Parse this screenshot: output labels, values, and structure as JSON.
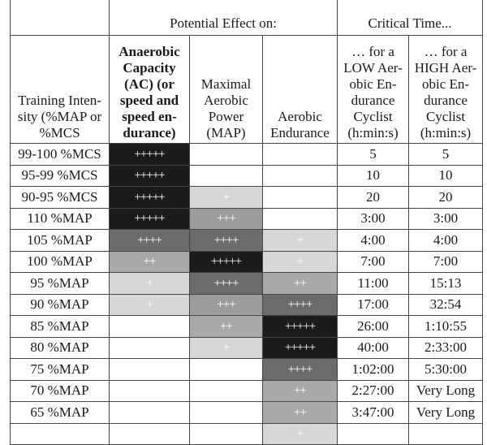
{
  "header": {
    "group_effect": "Potential Effect on:",
    "group_time": "Critical Time...",
    "col_intensity": "Training Inten-sity (%MAP or %MCS",
    "col_ac": "Anaerobic Capacity (AC) (or speed and speed en-durance)",
    "col_map": "Maximal Aerobic Power (MAP)",
    "col_ae": "Aerobic Endurance",
    "col_low": "… for a LOW Aer-obic En-durance Cyclist (h:min:s)",
    "col_high": "… for a HIGH Aer-obic En-durance Cyclist (h:min:s)"
  },
  "shade_colors": {
    "5": "#1c1a1a",
    "4": "#6b6b6b",
    "3": "#9c9c9c",
    "2": "#a9a9a9",
    "1": "#d7d7d7"
  },
  "rows": [
    {
      "intensity": "99-100 %MCS",
      "ac": "+++++",
      "map": "",
      "ae": "",
      "low": "5",
      "high": "5"
    },
    {
      "intensity": "95-99 %MCS",
      "ac": "+++++",
      "map": "",
      "ae": "",
      "low": "10",
      "high": "10"
    },
    {
      "intensity": "90-95 %MCS",
      "ac": "+++++",
      "map": "+",
      "ae": "",
      "low": "20",
      "high": "20"
    },
    {
      "intensity": "110 %MAP",
      "ac": "+++++",
      "map": "+++",
      "ae": "",
      "low": "3:00",
      "high": "3:00"
    },
    {
      "intensity": "105 %MAP",
      "ac": "++++",
      "map": "++++",
      "ae": "+",
      "low": "4:00",
      "high": "4:00"
    },
    {
      "intensity": "100 %MAP",
      "ac": "++",
      "map": "+++++",
      "ae": "+",
      "low": "7:00",
      "high": "7:00"
    },
    {
      "intensity": "95 %MAP",
      "ac": "+",
      "map": "++++",
      "ae": "++",
      "low": "11:00",
      "high": "15:13"
    },
    {
      "intensity": "90 %MAP",
      "ac": "+",
      "map": "+++",
      "ae": "++++",
      "low": "17:00",
      "high": "32:54"
    },
    {
      "intensity": "85 %MAP",
      "ac": "",
      "map": "++",
      "ae": "+++++",
      "low": "26:00",
      "high": "1:10:55"
    },
    {
      "intensity": "80 %MAP",
      "ac": "",
      "map": "+",
      "ae": "+++++",
      "low": "40:00",
      "high": "2:33:00"
    },
    {
      "intensity": "75 %MAP",
      "ac": "",
      "map": "",
      "ae": "++++",
      "low": "1:02:00",
      "high": "5:30:00"
    },
    {
      "intensity": "70 %MAP",
      "ac": "",
      "map": "",
      "ae": "++",
      "low": "2:27:00",
      "high": "Very Long"
    },
    {
      "intensity": "65 %MAP",
      "ac": "",
      "map": "",
      "ae": "++",
      "low": "3:47:00",
      "high": "Very Long"
    },
    {
      "intensity": "",
      "ac": "",
      "map": "",
      "ae": "+",
      "low": "",
      "high": ""
    }
  ]
}
